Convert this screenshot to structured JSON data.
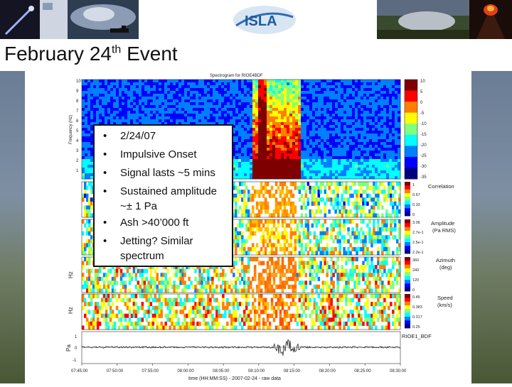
{
  "slide": {
    "title_main": "February 24",
    "title_sup": "th",
    "title_tail": " Event",
    "logo_text": "ISLA"
  },
  "bullets": [
    {
      "text": "2/24/07",
      "cont": ""
    },
    {
      "text": "Impulsive Onset",
      "cont": ""
    },
    {
      "text": "Signal lasts ~5 mins",
      "cont": ""
    },
    {
      "text": "Sustained amplitude",
      "cont": "~± 1 Pa"
    },
    {
      "text": "Ash >40’000 ft",
      "cont": ""
    },
    {
      "text": "Jetting? Similar",
      "cont": "spectrum"
    }
  ],
  "figure": {
    "spectrogram_title": "Spectrogram for RIOE4BDF",
    "frequency_label": "Frequency (Hz)",
    "freq_ticks": [
      "10",
      "9",
      "8",
      "7",
      "6",
      "5",
      "4",
      "3",
      "2",
      "1"
    ],
    "colorbar_ticks": [
      "10",
      "5",
      "0",
      "-5",
      "-10",
      "-15",
      "-20",
      "-25",
      "-30",
      "-35"
    ],
    "hz_label": "Hz",
    "pa_label": "Pa",
    "correlation_label": "Correlation",
    "corr_ticks": [
      "1",
      "0.67",
      "0.33",
      "0"
    ],
    "amplitude_label": [
      "Amplitude",
      "(Pa RMS)"
    ],
    "amp_ticks": [
      "3.06",
      "2.7e-1",
      "2.5e-1",
      "2.2e-1"
    ],
    "azimuth_label": [
      "Azimuth",
      "(deg)"
    ],
    "az_ticks": [
      "360",
      "240",
      "120",
      "0"
    ],
    "speed_label": [
      "Speed",
      "(km/s)"
    ],
    "speed_ticks": [
      "0.45",
      "0.383",
      "0.317",
      "0.25"
    ],
    "station_label": "RIOE1_BDF",
    "wave_yticks": [
      "1",
      "0",
      "-1"
    ],
    "time_ticks": [
      "07:45:00",
      "07:50:00",
      "07:55:00",
      "08:00:00",
      "08:05:00",
      "08:10:00",
      "08:15:00",
      "08:20:00",
      "08:25:00",
      "08:30:00"
    ],
    "xlabel": "time (HH:MM:SS) - 2007-02-24 - raw data"
  },
  "colors": {
    "jet": [
      "#00007f",
      "#0000ff",
      "#007fff",
      "#00ffff",
      "#7fff7f",
      "#ffff00",
      "#ff7f00",
      "#ff0000",
      "#7f0000"
    ],
    "background": "#ffffff"
  }
}
